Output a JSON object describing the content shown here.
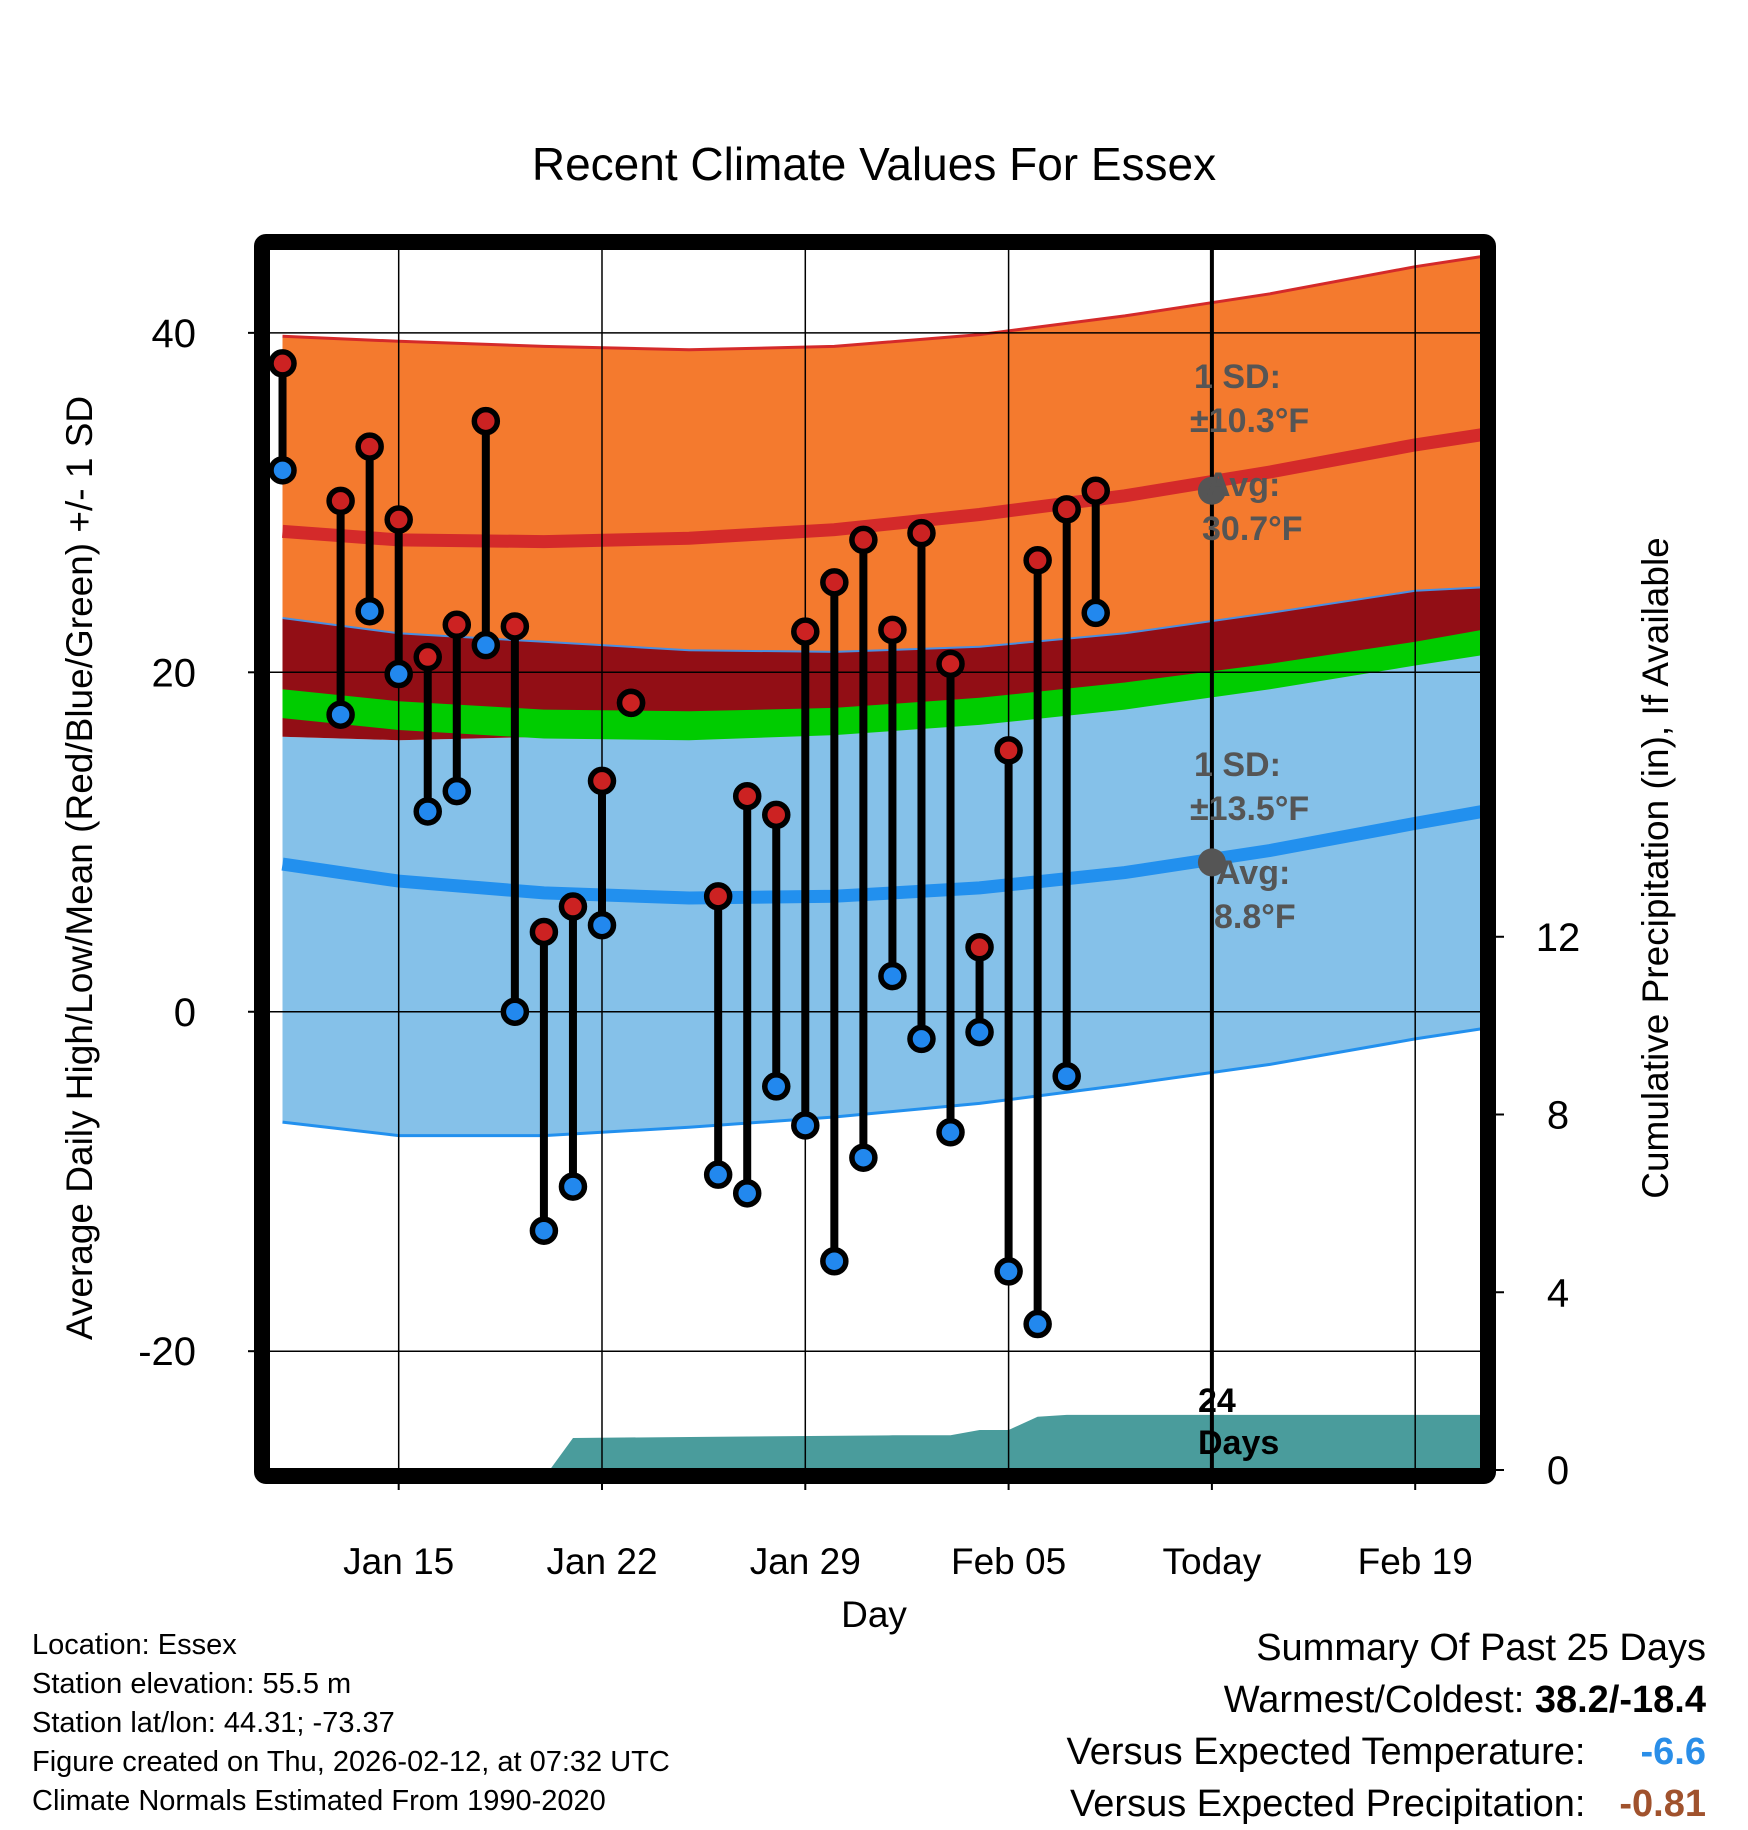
{
  "chart_data": {
    "type": "line",
    "title": "Recent Climate Values For Essex",
    "xlabel": "Day",
    "ylabel": "Average Daily High/Low/Mean (Red/Blue/Green) +/- 1 SD",
    "y2label": "Cumulative Precipitation (in), If Available",
    "ylim": [
      -27,
      45
    ],
    "y2lim": [
      0,
      27.5
    ],
    "xlim": [
      10.5,
      52.3
    ],
    "x_ticks": [
      {
        "day": 15,
        "label": "Jan 15"
      },
      {
        "day": 22,
        "label": "Jan 22"
      },
      {
        "day": 29,
        "label": "Jan 29"
      },
      {
        "day": 36,
        "label": "Feb 05"
      },
      {
        "day": 43,
        "label": "Today"
      },
      {
        "day": 50,
        "label": "Feb 19"
      }
    ],
    "y_ticks": [
      40,
      20,
      0,
      -20
    ],
    "y_minor_ticks": [
      30,
      10,
      -10
    ],
    "y2_ticks": [
      0,
      4,
      8,
      12
    ],
    "today_day": 43,
    "normals": {
      "x": [
        11,
        15,
        20,
        25,
        30,
        35,
        40,
        45,
        50,
        52.3
      ],
      "high_avg": [
        28.3,
        27.8,
        27.7,
        27.9,
        28.4,
        29.3,
        30.4,
        31.8,
        33.4,
        34.0
      ],
      "high_upper": [
        39.8,
        39.5,
        39.2,
        39.0,
        39.2,
        39.9,
        41.0,
        42.3,
        43.9,
        44.5
      ],
      "high_lower": [
        23.2,
        22.3,
        21.8,
        21.3,
        21.2,
        21.5,
        22.3,
        23.5,
        24.8,
        25.0
      ],
      "mean_upper": [
        19.0,
        18.3,
        17.8,
        17.7,
        17.9,
        18.5,
        19.4,
        20.5,
        21.8,
        22.5
      ],
      "mean_lower": [
        17.3,
        16.6,
        16.1,
        16.0,
        16.3,
        16.9,
        17.8,
        19.0,
        20.4,
        21.0
      ],
      "low_avg": [
        8.7,
        7.7,
        7.0,
        6.7,
        6.8,
        7.3,
        8.2,
        9.5,
        11.1,
        11.8
      ],
      "low_upper": [
        16.2,
        16.0,
        16.2,
        16.6,
        17.2,
        18.0,
        18.9,
        20.0,
        21.4,
        22.1
      ],
      "low_lower": [
        -6.5,
        -7.3,
        -7.3,
        -6.8,
        -6.2,
        -5.4,
        -4.3,
        -3.1,
        -1.6,
        -1.0
      ]
    },
    "series": [
      {
        "name": "High",
        "color": "#cc2222",
        "days": [
          11,
          13,
          14,
          15,
          16,
          17,
          18,
          19,
          20,
          21,
          22,
          23,
          26,
          27,
          28,
          29,
          30,
          31,
          32,
          33,
          34,
          35,
          36,
          37,
          38,
          39
        ],
        "values": [
          38.2,
          30.1,
          33.3,
          29.0,
          20.9,
          22.8,
          34.8,
          22.7,
          4.7,
          6.2,
          13.6,
          18.2,
          6.8,
          12.7,
          11.6,
          22.4,
          25.3,
          27.8,
          22.5,
          28.2,
          20.5,
          3.8,
          15.4,
          26.6,
          29.6,
          30.7
        ]
      },
      {
        "name": "Low",
        "color": "#2288ee",
        "days": [
          11,
          13,
          14,
          15,
          16,
          17,
          18,
          19,
          20,
          21,
          22,
          23,
          26,
          27,
          28,
          29,
          30,
          31,
          32,
          33,
          34,
          35,
          36,
          37,
          38,
          39
        ],
        "values": [
          31.9,
          17.5,
          23.6,
          19.9,
          11.8,
          13.0,
          21.6,
          0.0,
          -12.9,
          -10.3,
          5.1,
          18.2,
          -9.6,
          -10.7,
          -4.4,
          -6.7,
          -14.7,
          -8.6,
          2.1,
          -1.6,
          -7.1,
          -1.2,
          -15.3,
          -18.4,
          -3.8,
          23.5
        ]
      }
    ],
    "precipitation": {
      "x": [
        20.2,
        21,
        26,
        32,
        34,
        35,
        36,
        37,
        38,
        52.3
      ],
      "values": [
        0.0,
        0.72,
        0.75,
        0.78,
        0.78,
        0.9,
        0.9,
        1.2,
        1.24,
        1.24
      ]
    },
    "annotations": {
      "high_sd_label": "1 SD:",
      "high_sd_value": "±10.3°F",
      "high_avg_label": "Avg:",
      "high_avg_value": "30.7°F",
      "high_avg_at_today": 30.7,
      "low_sd_label": "1 SD:",
      "low_sd_value": "±13.5°F",
      "low_avg_label": "Avg:",
      "low_avg_value": "8.8°F",
      "low_avg_at_today": 8.8,
      "days_number": "24",
      "days_word": "Days"
    },
    "colors": {
      "high_band": "#f47a2e",
      "high_line": "#d42a2a",
      "mean_band": "#920e15",
      "mean_line": "#00cc00",
      "low_band": "#85c1e9",
      "low_line": "#2290ee",
      "precip": "#4a9c9c",
      "annotation": "#555555"
    }
  },
  "info": {
    "location": "Location: Essex",
    "elevation": "Station elevation: 55.5 m",
    "latlon": "Station lat/lon: 44.31; -73.37",
    "created": "Figure created on Thu, 2026-02-12, at 07:32 UTC",
    "normals": "Climate Normals Estimated From 1990-2020"
  },
  "summary": {
    "title": "Summary Of Past 25 Days",
    "warm_cold_label": "Warmest/Coldest:",
    "warm_cold_value": "38.2/-18.4",
    "temp_label": "Versus Expected Temperature:",
    "temp_value": "-6.6",
    "temp_color": "#2a8ee8",
    "precip_label": "Versus Expected Precipitation:",
    "precip_value": "-0.81",
    "precip_color": "#a0522d"
  }
}
